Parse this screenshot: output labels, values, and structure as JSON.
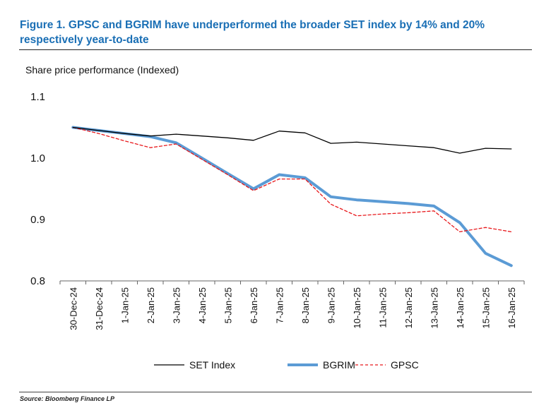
{
  "figure": {
    "title": "Figure 1. GPSC and BGRIM have underperformed the broader SET index by 14% and 20% respectively year-to-date",
    "source": "Source: Bloomberg Finance LP",
    "title_color": "#1a6fb5"
  },
  "chart_data": {
    "type": "line",
    "title": "",
    "ylabel": "Share price performance (Indexed)",
    "xlabel": "",
    "categories": [
      "30-Dec-24",
      "31-Dec-24",
      "1-Jan-25",
      "2-Jan-25",
      "3-Jan-25",
      "4-Jan-25",
      "5-Jan-25",
      "6-Jan-25",
      "7-Jan-25",
      "8-Jan-25",
      "9-Jan-25",
      "10-Jan-25",
      "11-Jan-25",
      "12-Jan-25",
      "13-Jan-25",
      "14-Jan-25",
      "15-Jan-25",
      "16-Jan-25"
    ],
    "ylim": [
      0.8,
      1.1
    ],
    "yticks": [
      0.8,
      0.9,
      1.0,
      1.1
    ],
    "ytick_labels": [
      "0.8",
      "0.9",
      "1.0",
      "1.1"
    ],
    "grid": false,
    "legend_position": "bottom",
    "series": [
      {
        "name": "SET Index",
        "color": "#000000",
        "style": "solid-thin",
        "values": [
          1.05,
          1.045,
          1.04,
          1.036,
          1.039,
          1.036,
          1.033,
          1.029,
          1.044,
          1.041,
          1.024,
          1.026,
          1.023,
          1.02,
          1.017,
          1.008,
          1.016,
          1.015
        ]
      },
      {
        "name": "BGRIM",
        "color": "#5b9bd5",
        "style": "solid-thick",
        "values": [
          1.05,
          1.045,
          1.04,
          1.035,
          1.025,
          1.0,
          0.975,
          0.95,
          0.973,
          0.968,
          0.937,
          0.932,
          0.929,
          0.926,
          0.922,
          0.895,
          0.845,
          0.825
        ]
      },
      {
        "name": "GPSC",
        "color": "#e8191c",
        "style": "dashed",
        "values": [
          1.05,
          1.04,
          1.028,
          1.017,
          1.023,
          0.998,
          0.973,
          0.947,
          0.966,
          0.966,
          0.925,
          0.906,
          0.909,
          0.911,
          0.914,
          0.88,
          0.887,
          0.88
        ]
      }
    ]
  }
}
